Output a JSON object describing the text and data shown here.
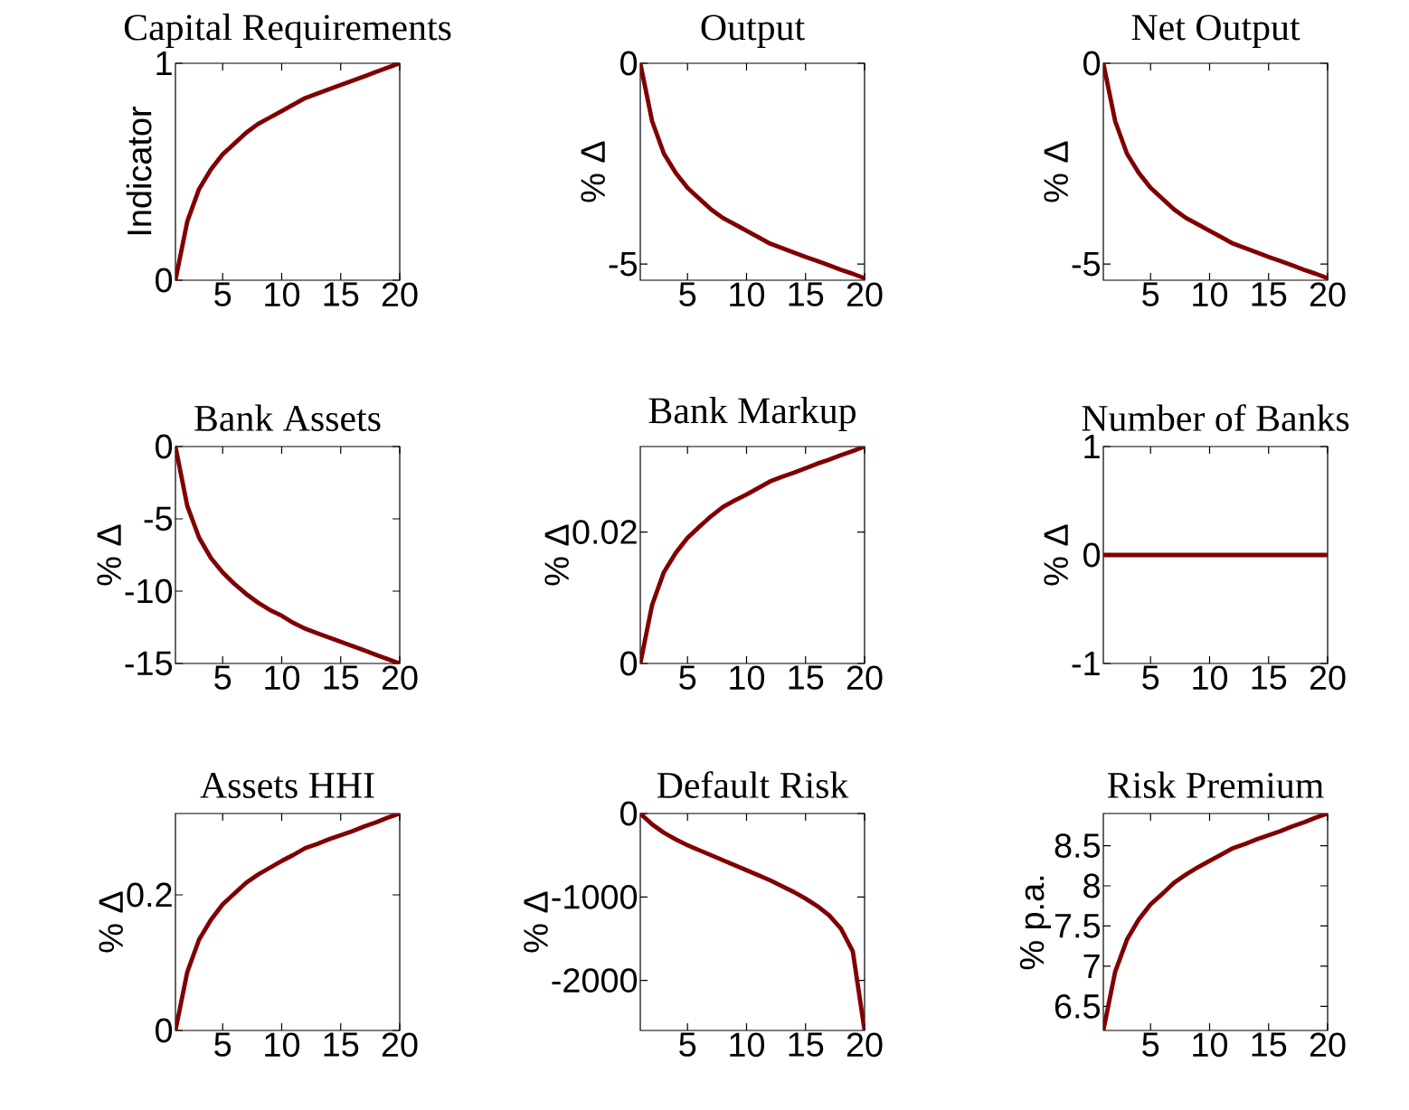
{
  "chart_data": [
    {
      "type": "line",
      "title": "Capital Requirements",
      "ylabel": "Indicator",
      "color": "#800000",
      "x": [
        1,
        2,
        3,
        4,
        5,
        6,
        7,
        8,
        9,
        10,
        11,
        12,
        13,
        14,
        15,
        16,
        17,
        18,
        19,
        20
      ],
      "values": [
        0,
        0.27,
        0.42,
        0.51,
        0.58,
        0.63,
        0.68,
        0.72,
        0.75,
        0.78,
        0.81,
        0.84,
        0.86,
        0.88,
        0.9,
        0.92,
        0.94,
        0.96,
        0.98,
        1
      ],
      "xlim": [
        1,
        20
      ],
      "xticks": [
        5,
        10,
        15,
        20
      ],
      "ylim": [
        0,
        1
      ],
      "yticks": [
        0,
        1
      ]
    },
    {
      "type": "line",
      "title": "Output",
      "ylabel": "% Δ",
      "color": "#800000",
      "x": [
        1,
        2,
        3,
        4,
        5,
        6,
        7,
        8,
        9,
        10,
        11,
        12,
        13,
        14,
        15,
        16,
        17,
        18,
        19,
        20
      ],
      "values": [
        0,
        -1.44,
        -2.25,
        -2.73,
        -3.1,
        -3.37,
        -3.64,
        -3.85,
        -4.01,
        -4.17,
        -4.33,
        -4.49,
        -4.6,
        -4.71,
        -4.82,
        -4.92,
        -5.03,
        -5.14,
        -5.24,
        -5.35
      ],
      "xlim": [
        1,
        20
      ],
      "xticks": [
        5,
        10,
        15,
        20
      ],
      "ylim": [
        -5.4,
        0
      ],
      "yticks": [
        -5,
        0
      ]
    },
    {
      "type": "line",
      "title": "Net Output",
      "ylabel": "% Δ",
      "color": "#800000",
      "x": [
        1,
        2,
        3,
        4,
        5,
        6,
        7,
        8,
        9,
        10,
        11,
        12,
        13,
        14,
        15,
        16,
        17,
        18,
        19,
        20
      ],
      "values": [
        0,
        -1.44,
        -2.25,
        -2.73,
        -3.1,
        -3.37,
        -3.64,
        -3.85,
        -4.01,
        -4.17,
        -4.33,
        -4.49,
        -4.6,
        -4.71,
        -4.82,
        -4.92,
        -5.03,
        -5.14,
        -5.24,
        -5.35
      ],
      "xlim": [
        1,
        20
      ],
      "xticks": [
        5,
        10,
        15,
        20
      ],
      "ylim": [
        -5.4,
        0
      ],
      "yticks": [
        -5,
        0
      ]
    },
    {
      "type": "line",
      "title": "Bank Assets",
      "ylabel": "% Δ",
      "color": "#800000",
      "x": [
        1,
        2,
        3,
        4,
        5,
        6,
        7,
        8,
        9,
        10,
        11,
        12,
        13,
        14,
        15,
        16,
        17,
        18,
        19,
        20
      ],
      "values": [
        0,
        -4.1,
        -6.3,
        -7.7,
        -8.7,
        -9.5,
        -10.2,
        -10.8,
        -11.3,
        -11.7,
        -12.2,
        -12.6,
        -12.9,
        -13.2,
        -13.5,
        -13.8,
        -14.1,
        -14.4,
        -14.7,
        -15
      ],
      "xlim": [
        1,
        20
      ],
      "xticks": [
        5,
        10,
        15,
        20
      ],
      "ylim": [
        -15,
        0
      ],
      "yticks": [
        -15,
        -10,
        -5,
        0
      ]
    },
    {
      "type": "line",
      "title": "Bank Markup",
      "ylabel": "% Δ",
      "color": "#800000",
      "x": [
        1,
        2,
        3,
        4,
        5,
        6,
        7,
        8,
        9,
        10,
        11,
        12,
        13,
        14,
        15,
        16,
        17,
        18,
        19,
        20
      ],
      "values": [
        0,
        0.0089,
        0.0139,
        0.0168,
        0.0191,
        0.0208,
        0.0224,
        0.0238,
        0.0248,
        0.0257,
        0.0267,
        0.0277,
        0.0284,
        0.029,
        0.0297,
        0.0304,
        0.031,
        0.0317,
        0.0323,
        0.033
      ],
      "xlim": [
        1,
        20
      ],
      "xticks": [
        5,
        10,
        15,
        20
      ],
      "ylim": [
        0,
        0.033
      ],
      "yticks": [
        0,
        0.02
      ]
    },
    {
      "type": "line",
      "title": "Number of Banks",
      "ylabel": "% Δ",
      "color": "#800000",
      "x": [
        1,
        2,
        3,
        4,
        5,
        6,
        7,
        8,
        9,
        10,
        11,
        12,
        13,
        14,
        15,
        16,
        17,
        18,
        19,
        20
      ],
      "values": [
        0,
        0,
        0,
        0,
        0,
        0,
        0,
        0,
        0,
        0,
        0,
        0,
        0,
        0,
        0,
        0,
        0,
        0,
        0,
        0
      ],
      "xlim": [
        1,
        20
      ],
      "xticks": [
        5,
        10,
        15,
        20
      ],
      "ylim": [
        -1,
        1
      ],
      "yticks": [
        -1,
        0,
        1
      ]
    },
    {
      "type": "line",
      "title": "Assets HHI",
      "ylabel": "% Δ",
      "color": "#800000",
      "x": [
        1,
        2,
        3,
        4,
        5,
        6,
        7,
        8,
        9,
        10,
        11,
        12,
        13,
        14,
        15,
        16,
        17,
        18,
        19,
        20
      ],
      "values": [
        0,
        0.086,
        0.134,
        0.163,
        0.186,
        0.202,
        0.218,
        0.23,
        0.24,
        0.25,
        0.259,
        0.269,
        0.275,
        0.282,
        0.288,
        0.294,
        0.301,
        0.307,
        0.314,
        0.32
      ],
      "xlim": [
        1,
        20
      ],
      "xticks": [
        5,
        10,
        15,
        20
      ],
      "ylim": [
        0,
        0.32
      ],
      "yticks": [
        0,
        0.2
      ]
    },
    {
      "type": "line",
      "title": "Default Risk",
      "ylabel": "% Δ",
      "color": "#800000",
      "x": [
        1,
        2,
        3,
        4,
        5,
        6,
        7,
        8,
        9,
        10,
        11,
        12,
        13,
        14,
        15,
        16,
        17,
        18,
        19,
        20
      ],
      "values": [
        0,
        -130,
        -230,
        -310,
        -380,
        -440,
        -500,
        -560,
        -620,
        -680,
        -740,
        -800,
        -870,
        -940,
        -1020,
        -1110,
        -1220,
        -1380,
        -1650,
        -2600
      ],
      "xlim": [
        1,
        20
      ],
      "xticks": [
        5,
        10,
        15,
        20
      ],
      "ylim": [
        -2600,
        0
      ],
      "yticks": [
        -2000,
        -1000,
        0
      ]
    },
    {
      "type": "line",
      "title": "Risk Premium",
      "ylabel": "% p.a.",
      "color": "#800000",
      "x": [
        1,
        2,
        3,
        4,
        5,
        6,
        7,
        8,
        9,
        10,
        11,
        12,
        13,
        14,
        15,
        16,
        17,
        18,
        19,
        20
      ],
      "values": [
        6.2,
        6.93,
        7.33,
        7.58,
        7.77,
        7.9,
        8.04,
        8.14,
        8.23,
        8.31,
        8.39,
        8.47,
        8.52,
        8.58,
        8.63,
        8.68,
        8.74,
        8.79,
        8.85,
        8.9
      ],
      "xlim": [
        1,
        20
      ],
      "xticks": [
        5,
        10,
        15,
        20
      ],
      "ylim": [
        6.2,
        8.9
      ],
      "yticks": [
        6.5,
        7,
        7.5,
        8,
        8.5
      ]
    }
  ]
}
